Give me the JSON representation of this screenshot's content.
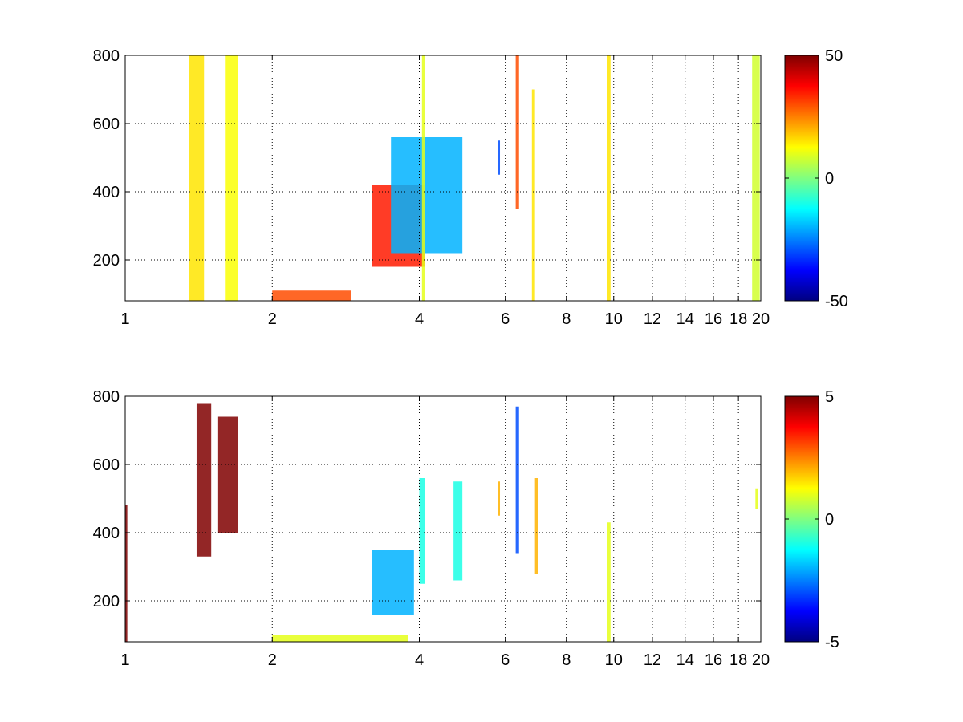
{
  "chart_data": [
    {
      "type": "heatmap",
      "title": "",
      "xlabel": "",
      "ylabel": "",
      "xlim": [
        1,
        20
      ],
      "ylim": [
        80,
        800
      ],
      "x_scale": "log",
      "x_ticks": [
        1,
        2,
        4,
        6,
        8,
        10,
        12,
        14,
        16,
        18,
        20
      ],
      "y_ticks": [
        200,
        400,
        600,
        800
      ],
      "grid": true,
      "colormap": "jet",
      "clim": [
        -50,
        50
      ],
      "colorbar_ticks": [
        -50,
        0,
        50
      ],
      "features": [
        {
          "x": [
            1.35,
            1.45
          ],
          "y": [
            80,
            800
          ],
          "value": 15
        },
        {
          "x": [
            1.6,
            1.7
          ],
          "y": [
            80,
            800
          ],
          "value": 12
        },
        {
          "x": [
            2.0,
            2.9
          ],
          "y": [
            80,
            110
          ],
          "value": 30
        },
        {
          "x": [
            3.2,
            4.1
          ],
          "y": [
            180,
            420
          ],
          "value": 35
        },
        {
          "x": [
            3.5,
            4.9
          ],
          "y": [
            220,
            560
          ],
          "value": -20
        },
        {
          "x": [
            4.05,
            4.1
          ],
          "y": [
            80,
            800
          ],
          "value": 10
        },
        {
          "x": [
            5.8,
            5.85
          ],
          "y": [
            450,
            550
          ],
          "value": -30
        },
        {
          "x": [
            6.3,
            6.4
          ],
          "y": [
            350,
            800
          ],
          "value": 30
        },
        {
          "x": [
            6.8,
            6.9
          ],
          "y": [
            80,
            700
          ],
          "value": 15
        },
        {
          "x": [
            9.7,
            9.85
          ],
          "y": [
            80,
            800
          ],
          "value": 15
        },
        {
          "x": [
            19.2,
            19.9
          ],
          "y": [
            80,
            800
          ],
          "value": 8
        }
      ]
    },
    {
      "type": "heatmap",
      "title": "",
      "xlabel": "",
      "ylabel": "",
      "xlim": [
        1,
        20
      ],
      "ylim": [
        80,
        800
      ],
      "x_scale": "log",
      "x_ticks": [
        1,
        2,
        4,
        6,
        8,
        10,
        12,
        14,
        16,
        18,
        20
      ],
      "y_ticks": [
        200,
        400,
        600,
        800
      ],
      "grid": true,
      "colormap": "jet",
      "clim": [
        -5,
        5
      ],
      "colorbar_ticks": [
        -5,
        0,
        5
      ],
      "features": [
        {
          "x": [
            1.0,
            1.01
          ],
          "y": [
            80,
            480
          ],
          "value": 5
        },
        {
          "x": [
            1.4,
            1.5
          ],
          "y": [
            330,
            780
          ],
          "value": 5
        },
        {
          "x": [
            1.55,
            1.7
          ],
          "y": [
            400,
            740
          ],
          "value": 5
        },
        {
          "x": [
            3.2,
            3.9
          ],
          "y": [
            160,
            350
          ],
          "value": -2
        },
        {
          "x": [
            4.0,
            4.1
          ],
          "y": [
            250,
            560
          ],
          "value": -1
        },
        {
          "x": [
            4.7,
            4.9
          ],
          "y": [
            260,
            550
          ],
          "value": -1
        },
        {
          "x": [
            2.0,
            3.8
          ],
          "y": [
            80,
            100
          ],
          "value": 1
        },
        {
          "x": [
            5.8,
            5.85
          ],
          "y": [
            450,
            550
          ],
          "value": 2
        },
        {
          "x": [
            6.3,
            6.4
          ],
          "y": [
            340,
            770
          ],
          "value": -3
        },
        {
          "x": [
            6.9,
            7.0
          ],
          "y": [
            280,
            560
          ],
          "value": 2
        },
        {
          "x": [
            9.7,
            9.85
          ],
          "y": [
            80,
            430
          ],
          "value": 1
        },
        {
          "x": [
            19.5,
            19.7
          ],
          "y": [
            470,
            530
          ],
          "value": 1
        }
      ]
    }
  ]
}
